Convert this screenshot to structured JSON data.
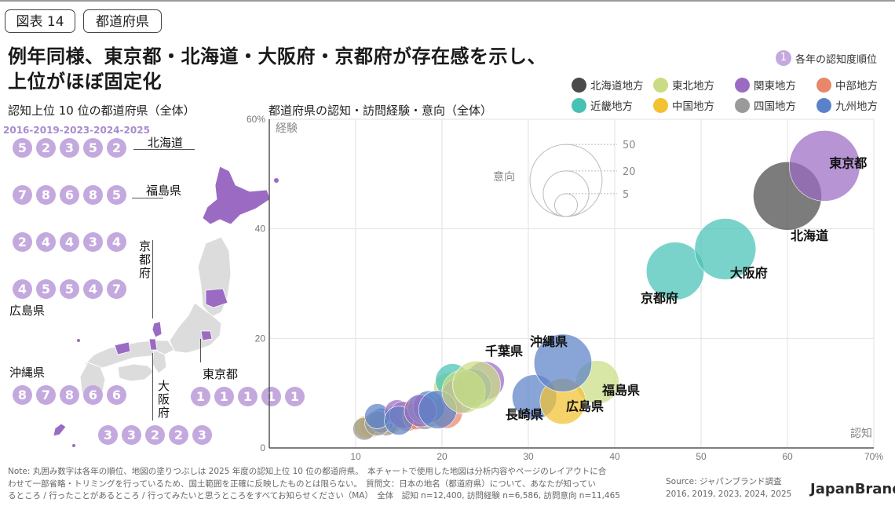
{
  "header": {
    "figure_no": "図表 14",
    "category": "都道府県",
    "headline_line1": "例年同様、東京都・北海道・大阪府・京都府が存在感を示し、",
    "headline_line2": "上位がほぼ固定化"
  },
  "left_panel": {
    "subtitle": "認知上位 10 位の都道府県（全体）",
    "years_label": "2016-2019-2023-2024-2025",
    "prefectures": [
      {
        "name": "北海道",
        "ranks": [
          5,
          2,
          3,
          5,
          2
        ]
      },
      {
        "name": "福島県",
        "ranks": [
          7,
          8,
          6,
          8,
          5
        ]
      },
      {
        "name": "京都府",
        "ranks": [
          2,
          4,
          4,
          3,
          4
        ]
      },
      {
        "name": "広島県",
        "ranks": [
          4,
          5,
          5,
          4,
          7
        ]
      },
      {
        "name": "沖縄県",
        "ranks": [
          8,
          7,
          8,
          6,
          6
        ]
      },
      {
        "name": "大阪府",
        "ranks": [
          3,
          3,
          2,
          2,
          3
        ]
      },
      {
        "name": "東京都",
        "ranks": [
          1,
          1,
          1,
          1,
          1
        ]
      }
    ],
    "map_fill_color": "#9b6bc4"
  },
  "legend": {
    "rank_note": "各年の認知度順位",
    "rank_note_glyph": "1",
    "regions": [
      {
        "name": "北海道地方",
        "color": "#4a4a4a"
      },
      {
        "name": "東北地方",
        "color": "#c9dc84"
      },
      {
        "name": "関東地方",
        "color": "#9b6bc4"
      },
      {
        "name": "中部地方",
        "color": "#e8876a"
      },
      {
        "name": "近畿地方",
        "color": "#46c2b5"
      },
      {
        "name": "中国地方",
        "color": "#f2c230"
      },
      {
        "name": "四国地方",
        "color": "#9a9a9a"
      },
      {
        "name": "九州地方",
        "color": "#5b82c8"
      }
    ]
  },
  "chart_data": {
    "type": "scatter",
    "title": "都道府県の認知・訪問経験・意向（全体）",
    "xlabel": "認知",
    "ylabel": "経験",
    "size_label": "意向",
    "xlim": [
      0,
      70
    ],
    "ylim": [
      0,
      60
    ],
    "x_ticks": [
      10,
      20,
      30,
      40,
      50,
      60,
      70
    ],
    "x_tick_labels": [
      "10",
      "20",
      "30",
      "40",
      "50",
      "60",
      "70%"
    ],
    "y_ticks": [
      0,
      20,
      40,
      60
    ],
    "y_tick_labels": [
      "0",
      "20",
      "40",
      "60%"
    ],
    "grid": true,
    "size_legend": [
      50,
      20,
      5
    ],
    "size_legend_labels": [
      "50",
      "20",
      "5"
    ],
    "points": [
      {
        "name": "東京都",
        "region": "関東地方",
        "x": 64.3,
        "y": 51.5,
        "size": 48
      },
      {
        "name": "北海道",
        "region": "北海道地方",
        "x": 60.0,
        "y": 46.0,
        "size": 45
      },
      {
        "name": "大阪府",
        "region": "近畿地方",
        "x": 52.8,
        "y": 36.3,
        "size": 36
      },
      {
        "name": "京都府",
        "region": "近畿地方",
        "x": 47.0,
        "y": 32.3,
        "size": 32
      },
      {
        "name": "沖縄県",
        "region": "九州地方",
        "x": 34.0,
        "y": 15.5,
        "size": 32
      },
      {
        "name": "福島県",
        "region": "東北地方",
        "x": 38.0,
        "y": 12.0,
        "size": 18
      },
      {
        "name": "長崎県",
        "region": "九州地方",
        "x": 30.7,
        "y": 9.3,
        "size": 19
      },
      {
        "name": "広島県",
        "region": "中国地方",
        "x": 34.0,
        "y": 8.5,
        "size": 20
      },
      {
        "name": "千葉県",
        "region": "関東地方",
        "x": 25.0,
        "y": 12.3,
        "size": 14
      },
      {
        "name": "",
        "region": "東北地方",
        "x": 24.0,
        "y": 11.5,
        "size": 22
      },
      {
        "name": "",
        "region": "九州地方",
        "x": 23.5,
        "y": 11.0,
        "size": 14
      },
      {
        "name": "",
        "region": "東北地方",
        "x": 22.5,
        "y": 10.3,
        "size": 18
      },
      {
        "name": "",
        "region": "近畿地方",
        "x": 21.2,
        "y": 12.3,
        "size": 11
      },
      {
        "name": "",
        "region": "東北地方",
        "x": 20.8,
        "y": 11.0,
        "size": 9
      },
      {
        "name": "",
        "region": "関東地方",
        "x": 22.0,
        "y": 9.5,
        "size": 12
      },
      {
        "name": "",
        "region": "中部地方",
        "x": 20.5,
        "y": 6.5,
        "size": 10
      },
      {
        "name": "",
        "region": "九州地方",
        "x": 19.5,
        "y": 7.0,
        "size": 14
      },
      {
        "name": "",
        "region": "九州地方",
        "x": 18.5,
        "y": 7.5,
        "size": 10
      },
      {
        "name": "",
        "region": "関東地方",
        "x": 17.5,
        "y": 6.8,
        "size": 10
      },
      {
        "name": "",
        "region": "四国地方",
        "x": 18.0,
        "y": 6.0,
        "size": 8
      },
      {
        "name": "",
        "region": "中国地方",
        "x": 16.5,
        "y": 6.2,
        "size": 7
      },
      {
        "name": "",
        "region": "中部地方",
        "x": 16.0,
        "y": 5.5,
        "size": 7
      },
      {
        "name": "",
        "region": "関東地方",
        "x": 15.5,
        "y": 6.0,
        "size": 7
      },
      {
        "name": "",
        "region": "九州地方",
        "x": 15.0,
        "y": 5.0,
        "size": 8
      },
      {
        "name": "",
        "region": "東北地方",
        "x": 14.5,
        "y": 5.5,
        "size": 6
      },
      {
        "name": "",
        "region": "中国地方",
        "x": 14.0,
        "y": 4.8,
        "size": 6
      },
      {
        "name": "",
        "region": "四国地方",
        "x": 13.5,
        "y": 4.5,
        "size": 6
      },
      {
        "name": "",
        "region": "九州地方",
        "x": 13.0,
        "y": 5.0,
        "size": 6
      },
      {
        "name": "",
        "region": "四国地方",
        "x": 12.5,
        "y": 4.5,
        "size": 6
      },
      {
        "name": "",
        "region": "中部地方",
        "x": 12.0,
        "y": 4.2,
        "size": 5
      },
      {
        "name": "",
        "region": "東北地方",
        "x": 11.8,
        "y": 4.0,
        "size": 5
      },
      {
        "name": "",
        "region": "中国地方",
        "x": 11.2,
        "y": 3.8,
        "size": 5
      },
      {
        "name": "",
        "region": "四国地方",
        "x": 11.0,
        "y": 3.5,
        "size": 5
      },
      {
        "name": "",
        "region": "九州地方",
        "x": 12.5,
        "y": 5.8,
        "size": 6
      },
      {
        "name": "",
        "region": "関東地方",
        "x": 14.8,
        "y": 6.5,
        "size": 6
      },
      {
        "name": "",
        "region": "中部地方",
        "x": 17.0,
        "y": 5.8,
        "size": 7
      },
      {
        "name": "",
        "region": "東北地方",
        "x": 18.8,
        "y": 6.5,
        "size": 8
      },
      {
        "name": "",
        "region": "近畿地方",
        "x": 17.8,
        "y": 7.2,
        "size": 9
      }
    ]
  },
  "footer": {
    "note_line1": "Note: 丸囲み数字は各年の順位、地図の塗りつぶしは 2025 年度の認知上位 10 位の都道府県。　本チャートで使用した地図は分析内容やページのレイアウトに合",
    "note_line2": "わせて一部省略・トリミングを行っているため、国土範囲を正確に反映したものとは限らない。　質問文：日本の地名（都道府県）について、あなたが知ってい",
    "note_line3": "るところ / 行ったことがあるところ / 行ってみたいと思うところをすべてお知らせください（MA）　全体　認知 n=12,400, 訪問経験 n=6,586, 訪問意向 n=11,465",
    "source_line1": "Source: ジャパンブランド調査",
    "source_line2": "2016, 2019, 2023, 2024, 2025",
    "brand": "JapanBrand"
  }
}
